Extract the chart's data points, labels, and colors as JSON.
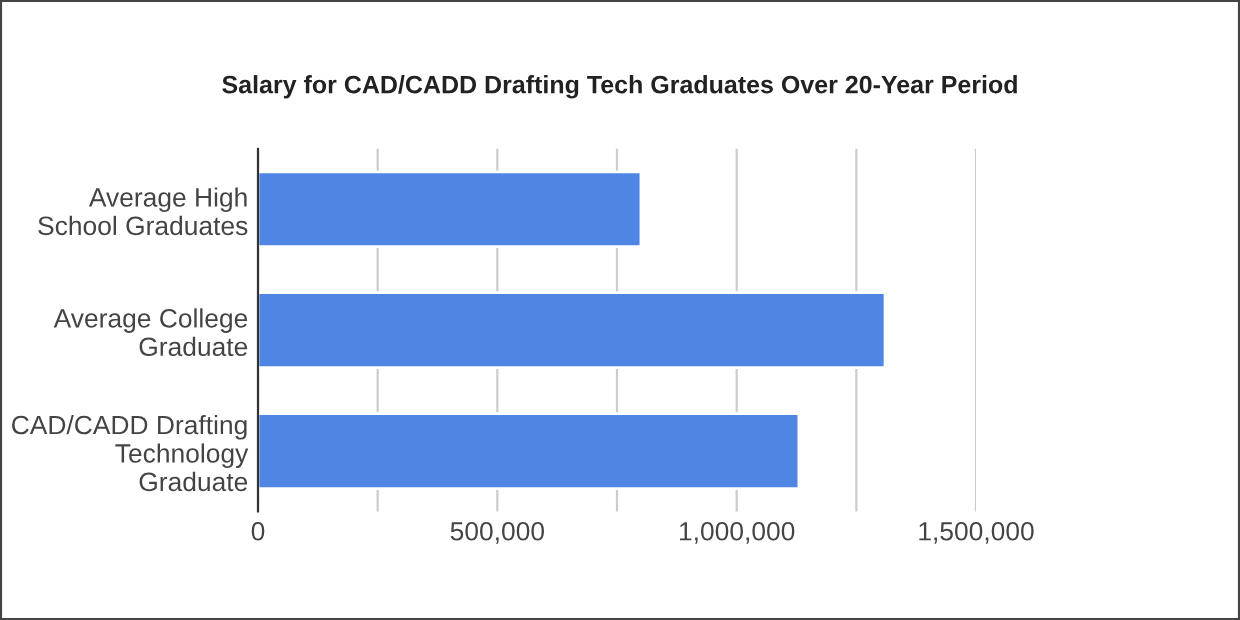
{
  "chart_data": {
    "type": "bar",
    "orientation": "horizontal",
    "title": "Salary for CAD/CADD Drafting Tech Graduates Over 20-Year Period",
    "categories": [
      "Average High School Graduates",
      "Average College Graduate",
      "CAD/CADD Drafting Technology Graduate"
    ],
    "values": [
      800000,
      1310000,
      1130000
    ],
    "color": "#5086e3",
    "xlim": [
      0,
      1500000
    ],
    "xticks": [
      0,
      {
        "value": 250000,
        "label": null
      },
      {
        "value": 500000,
        "label": "500,000"
      },
      {
        "value": 750000,
        "label": null
      },
      {
        "value": 1000000,
        "label": "1,000,000"
      },
      {
        "value": 1250000,
        "label": null
      },
      {
        "value": 1500000,
        "label": "1,500,000"
      }
    ],
    "grid": "x",
    "legend": false
  }
}
